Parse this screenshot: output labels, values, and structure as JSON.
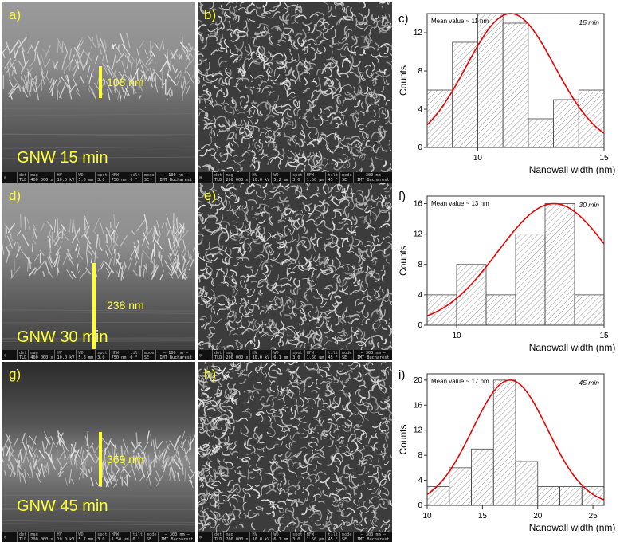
{
  "sem_panels": [
    {
      "label": "a)",
      "measure": "108 nm",
      "caption": "GNW 15 min",
      "info": [
        [
          "det",
          "TLD"
        ],
        [
          "mag",
          "400 000 x"
        ],
        [
          "HV",
          "10.0 kV"
        ],
        [
          "WD",
          "5.0 mm"
        ],
        [
          "spot",
          "3.0"
        ],
        [
          "HFW",
          "750 nm"
        ],
        [
          "tilt",
          "0 °"
        ],
        [
          "mode",
          "SE"
        ]
      ],
      "scale": "100 nm",
      "lab": "IMT Bucharest"
    },
    {
      "label": "b)",
      "info": [
        [
          "det",
          "TLD"
        ],
        [
          "mag",
          "200 000 x"
        ],
        [
          "HV",
          "10.0 kV"
        ],
        [
          "WD",
          "5.2 mm"
        ],
        [
          "spot",
          "3.0"
        ],
        [
          "HFW",
          "1.50 µm"
        ],
        [
          "tilt",
          "45 °"
        ],
        [
          "mode",
          "SE"
        ]
      ],
      "scale": "300 nm",
      "lab": "IMT Bucharest"
    },
    {
      "label": "d)",
      "measure": "238 nm",
      "caption": "GNW 30 min",
      "info": [
        [
          "det",
          "TLD"
        ],
        [
          "mag",
          "400 000 x"
        ],
        [
          "HV",
          "10.0 kV"
        ],
        [
          "WD",
          "5.8 mm"
        ],
        [
          "spot",
          "3.0"
        ],
        [
          "HFW",
          "750 nm"
        ],
        [
          "tilt",
          "0 °"
        ],
        [
          "mode",
          "SE"
        ]
      ],
      "scale": "100 nm",
      "lab": "IMT Bucharest"
    },
    {
      "label": "e)",
      "info": [
        [
          "det",
          "TLD"
        ],
        [
          "mag",
          "200 000 x"
        ],
        [
          "HV",
          "10.0 kV"
        ],
        [
          "WD",
          "6.1 mm"
        ],
        [
          "spot",
          "3.0"
        ],
        [
          "HFW",
          "1.50 µm"
        ],
        [
          "tilt",
          "45 °"
        ],
        [
          "mode",
          "SE"
        ]
      ],
      "scale": "300 nm",
      "lab": "IMT Bucharest"
    },
    {
      "label": "g)",
      "measure": "369 nm",
      "caption": "GNW 45 min",
      "info": [
        [
          "det",
          "TLD"
        ],
        [
          "mag",
          "200 000 x"
        ],
        [
          "HV",
          "10.0 kV"
        ],
        [
          "WD",
          "5.7 mm"
        ],
        [
          "spot",
          "3.0"
        ],
        [
          "HFW",
          "1.50 µm"
        ],
        [
          "tilt",
          "0 °"
        ],
        [
          "mode",
          "SE"
        ]
      ],
      "scale": "300 nm",
      "lab": "IMT Bucharest"
    },
    {
      "label": "h)",
      "info": [
        [
          "det",
          "TLD"
        ],
        [
          "mag",
          "200 000 x"
        ],
        [
          "HV",
          "10.0 kV"
        ],
        [
          "WD",
          "6.1 mm"
        ],
        [
          "spot",
          "3.0"
        ],
        [
          "HFW",
          "1.50 µm"
        ],
        [
          "tilt",
          "45 °"
        ],
        [
          "mode",
          "SE"
        ]
      ],
      "scale": "300 nm",
      "lab": "IMT Bucharest"
    }
  ],
  "chart_data": [
    {
      "type": "bar",
      "panel_label": "c)",
      "mean_label": "Mean value  ~ 11 nm",
      "time_label": "15 min",
      "xlabel": "Nanowall width (nm)",
      "ylabel": "Counts",
      "xlim": [
        8,
        15
      ],
      "ylim": [
        0,
        14
      ],
      "xticks": [
        10,
        15
      ],
      "yticks": [
        0,
        4,
        8,
        12
      ],
      "bins": [
        [
          8,
          9,
          6
        ],
        [
          9,
          10,
          11
        ],
        [
          10,
          11,
          14
        ],
        [
          11,
          12,
          13
        ],
        [
          12,
          13,
          3
        ],
        [
          13,
          14,
          5
        ],
        [
          14,
          15,
          6
        ]
      ],
      "fit": {
        "type": "gaussian",
        "center": 11.3,
        "sigma": 1.75,
        "amplitude": 14
      },
      "fit_color": "#e60000"
    },
    {
      "type": "bar",
      "panel_label": "f)",
      "mean_label": "Mean value  ~ 13 nm",
      "time_label": "30 min",
      "xlabel": "Nanowall width (nm)",
      "ylabel": "Counts",
      "xlim": [
        9,
        15
      ],
      "ylim": [
        0,
        17
      ],
      "xticks": [
        10,
        15
      ],
      "yticks": [
        0,
        4,
        8,
        12,
        16
      ],
      "bins": [
        [
          9,
          10,
          4
        ],
        [
          10,
          11,
          8
        ],
        [
          11,
          12,
          4
        ],
        [
          12,
          13,
          12
        ],
        [
          13,
          14,
          16
        ],
        [
          14,
          15,
          4
        ]
      ],
      "fit": {
        "type": "gaussian",
        "center": 13.3,
        "sigma": 1.9,
        "amplitude": 16
      },
      "fit_color": "#e60000"
    },
    {
      "type": "bar",
      "panel_label": "i)",
      "mean_label": "Mean value  ~ 17 nm",
      "time_label": "45 min",
      "xlabel": "Nanowall width (nm)",
      "ylabel": "Counts",
      "xlim": [
        10,
        26
      ],
      "ylim": [
        0,
        21
      ],
      "xticks": [
        10,
        15,
        20,
        25
      ],
      "yticks": [
        0,
        4,
        8,
        12,
        16,
        20
      ],
      "bins": [
        [
          10,
          12,
          3
        ],
        [
          12,
          14,
          6
        ],
        [
          14,
          16,
          9
        ],
        [
          16,
          18,
          20
        ],
        [
          18,
          20,
          7
        ],
        [
          20,
          22,
          3
        ],
        [
          22,
          24,
          3
        ],
        [
          24,
          26,
          3
        ]
      ],
      "fit": {
        "type": "gaussian",
        "center": 17.5,
        "sigma": 3.4,
        "amplitude": 20
      },
      "fit_color": "#e60000"
    }
  ]
}
